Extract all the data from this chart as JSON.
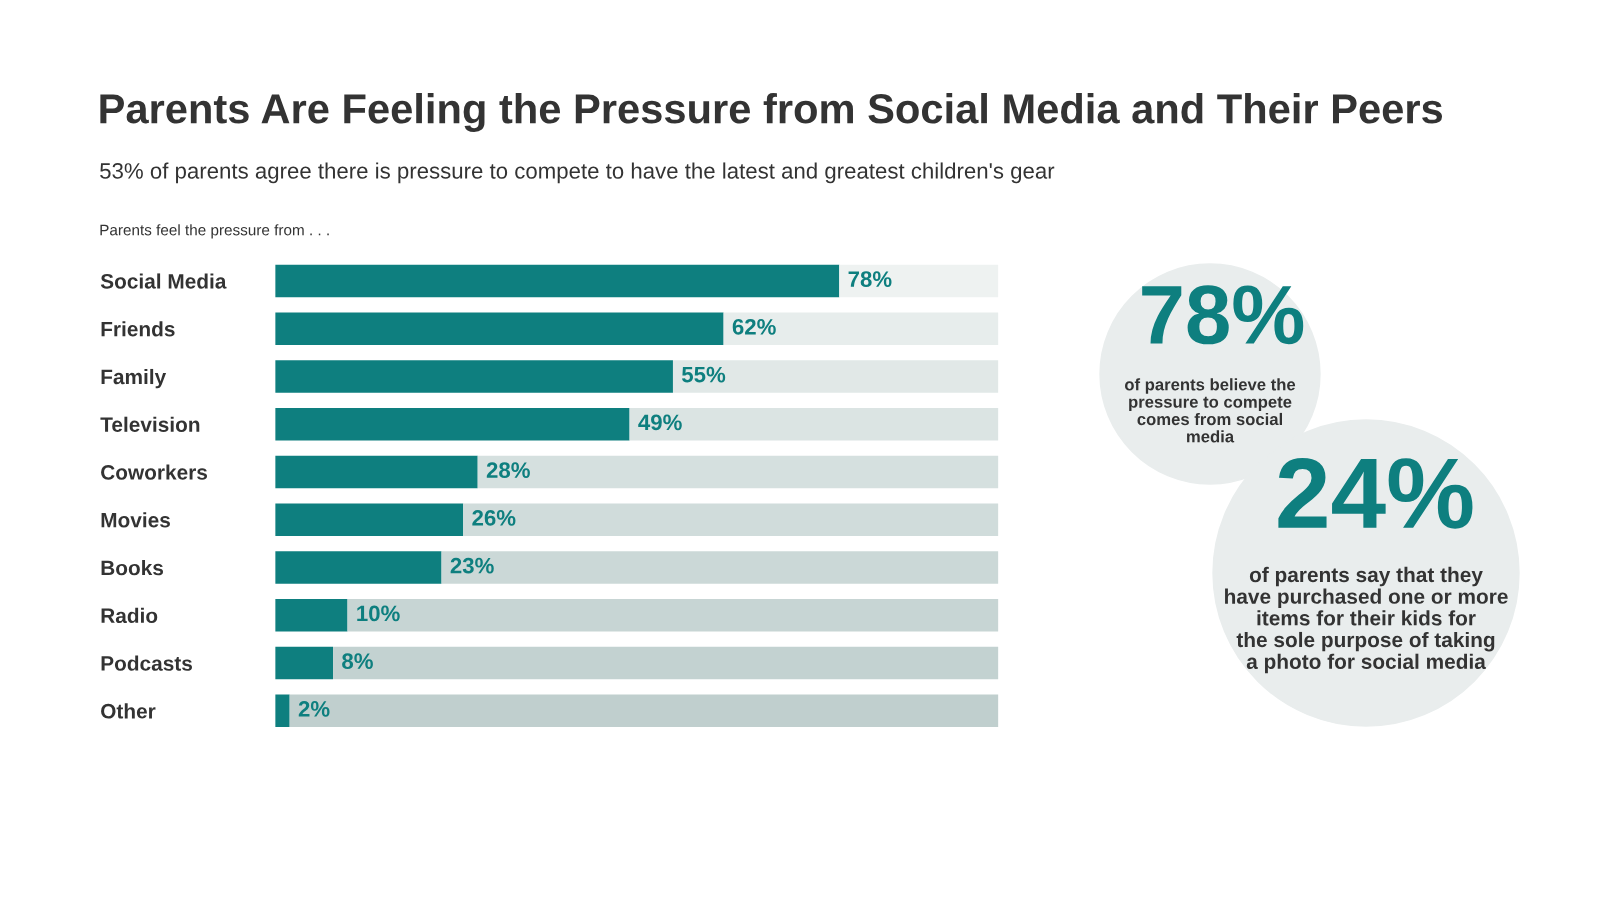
{
  "chart_data": [
    {
      "type": "bar",
      "orientation": "horizontal",
      "stacked": true,
      "title": "Parents Are Feeling the Pressure from Social Media and Their Peers",
      "subtitle": "53% of parents agree there is pressure to compete to have the latest and greatest children's gear",
      "annotations": [
        "Parents feel the pressure from . . ."
      ],
      "categories": [
        "Social Media",
        "Friends",
        "Family",
        "Television",
        "Coworkers",
        "Movies",
        "Books",
        "Radio",
        "Podcasts",
        "Other"
      ],
      "series": [
        {
          "color": "#0e7f7f",
          "values": [
            78,
            62,
            55,
            49,
            28,
            26,
            23,
            10,
            8,
            2
          ],
          "value_labels": [
            "78%",
            "62%",
            "55%",
            "49%",
            "28%",
            "26%",
            "23%",
            "10%",
            "8%",
            "2%"
          ]
        },
        {
          "colors": [
            "#eef2f1",
            "#e7edec",
            "#e1e8e7",
            "#dbe4e3",
            "#d5e0df",
            "#d0dcdb",
            "#cbd8d7",
            "#c7d5d4",
            "#c3d2d1",
            "#c0cfce"
          ],
          "values": [
            22,
            38,
            45,
            51,
            72,
            74,
            77,
            90,
            92,
            98
          ]
        }
      ],
      "grid": false,
      "legend": false
    },
    {
      "type": "other",
      "annotations": [
        "78%",
        "of parents believe the pressure to compete comes from social media",
        "24%",
        "of parents say that they have purchased one or more items for their kids for the sole purpose of taking a photo for social media"
      ]
    }
  ]
}
